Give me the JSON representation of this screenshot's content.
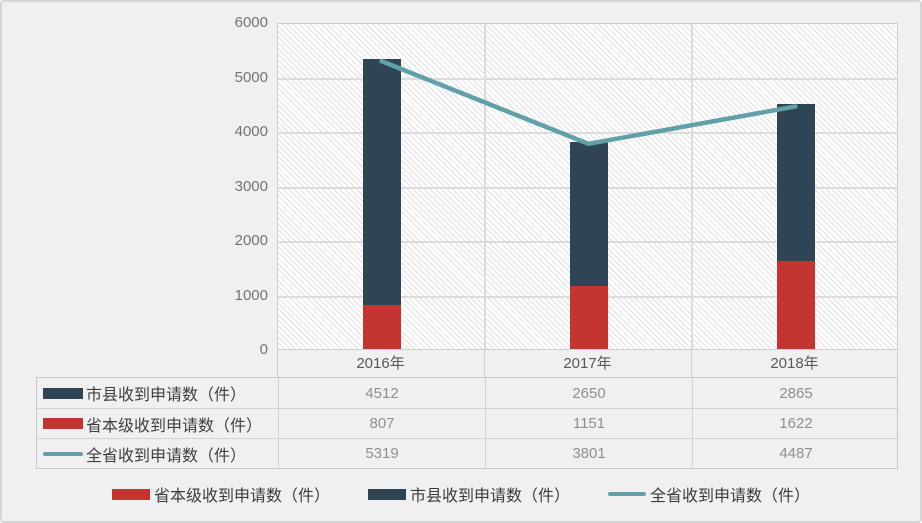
{
  "colors": {
    "background": "#f0f0f0",
    "frame_border": "#d5d5d5",
    "plot_background": "#ffffff",
    "hatch": "#e0e0e0",
    "gridline": "#dcdcdc",
    "axis_text": "#737373",
    "category_text": "#595959",
    "table_value_text": "#8f8f8f",
    "label_text": "#3f3f3f",
    "bar_dark": "#2f4554",
    "bar_red": "#c23531",
    "line_teal": "#61a0a8"
  },
  "chart_data": {
    "type": "bar",
    "subtype": "stacked-bar-with-line",
    "title": "",
    "xlabel": "",
    "ylabel": "",
    "categories": [
      "2016年",
      "2017年",
      "2018年"
    ],
    "series": [
      {
        "name": "省本级收到申请数（件）",
        "type": "bar",
        "stack_position": "bottom",
        "color": "#c23531",
        "values": [
          807,
          1151,
          1622
        ]
      },
      {
        "name": "市县收到申请数（件）",
        "type": "bar",
        "stack_position": "top",
        "color": "#2f4554",
        "values": [
          4512,
          2650,
          2865
        ]
      },
      {
        "name": "全省收到申请数（件）",
        "type": "line",
        "color": "#61a0a8",
        "values": [
          5319,
          3801,
          4487
        ]
      }
    ],
    "ylim": [
      0,
      6000
    ],
    "y_ticks": [
      0,
      1000,
      2000,
      3000,
      4000,
      5000,
      6000
    ],
    "grid": true,
    "legend_position": "bottom"
  },
  "data_table": {
    "rows": [
      {
        "label": "市县收到申请数（件）",
        "swatch": "bar-dark",
        "values": [
          "4512",
          "2650",
          "2865"
        ]
      },
      {
        "label": "省本级收到申请数（件）",
        "swatch": "bar-red",
        "values": [
          "807",
          "1151",
          "1622"
        ]
      },
      {
        "label": "全省收到申请数（件）",
        "swatch": "line-teal",
        "values": [
          "5319",
          "3801",
          "4487"
        ]
      }
    ]
  },
  "legend": {
    "items": [
      {
        "label": "省本级收到申请数（件）",
        "swatch": "bar-red"
      },
      {
        "label": "市县收到申请数（件）",
        "swatch": "bar-dark"
      },
      {
        "label": "全省收到申请数（件）",
        "swatch": "line-teal"
      }
    ]
  }
}
